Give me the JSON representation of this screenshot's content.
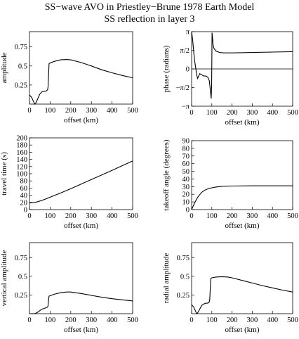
{
  "figure": {
    "title": "SS−wave AVO in Priestley−Brune 1978 Earth Model",
    "subtitle": "SS reflection in layer 3"
  },
  "chart_data": [
    {
      "id": "amplitude",
      "type": "line",
      "xlabel": "offset (km)",
      "ylabel": "amplitude",
      "xlim": [
        0,
        500
      ],
      "ylim": [
        0,
        0.95
      ],
      "xticks": [
        "0",
        "100",
        "200",
        "300",
        "400",
        "500"
      ],
      "yticks": [
        {
          "v": 0.25,
          "t": "0.25"
        },
        {
          "v": 0.5,
          "t": "0.5"
        },
        {
          "v": 0.75,
          "t": "0.75"
        }
      ],
      "zero_line": false,
      "x": [
        0,
        10,
        20,
        25,
        30,
        40,
        50,
        60,
        70,
        80,
        85,
        88,
        90,
        92,
        95,
        100,
        120,
        150,
        180,
        200,
        250,
        300,
        350,
        400,
        450,
        500
      ],
      "y": [
        0.12,
        0.09,
        0.03,
        0.0,
        0.01,
        0.07,
        0.13,
        0.16,
        0.17,
        0.17,
        0.18,
        0.19,
        0.23,
        0.35,
        0.53,
        0.54,
        0.56,
        0.58,
        0.585,
        0.58,
        0.545,
        0.5,
        0.45,
        0.41,
        0.375,
        0.345
      ]
    },
    {
      "id": "phase",
      "type": "line",
      "xlabel": "offset (km)",
      "ylabel": "phase (radians)",
      "xlim": [
        0,
        500
      ],
      "ylim": [
        -3.1416,
        3.1416
      ],
      "xticks": [
        "0",
        "100",
        "200",
        "300",
        "400",
        "500"
      ],
      "yticks": [
        {
          "v": 3.1416,
          "t": "π"
        },
        {
          "v": 1.5708,
          "t": "π/2"
        },
        {
          "v": 0,
          "t": "0"
        },
        {
          "v": -1.5708,
          "t": "−π/2"
        },
        {
          "v": -3.1416,
          "t": "−π"
        }
      ],
      "zero_line": true,
      "x": [
        0,
        5,
        10,
        15,
        20,
        25,
        30,
        35,
        40,
        50,
        60,
        70,
        80,
        88,
        92,
        95,
        97,
        99,
        100,
        101,
        103,
        106,
        110,
        120,
        140,
        160,
        200,
        250,
        300,
        400,
        500
      ],
      "y": [
        3.14,
        2.5,
        1.5,
        0.7,
        0.1,
        -0.5,
        -0.8,
        -0.6,
        -0.4,
        -0.5,
        -0.6,
        -0.6,
        -0.7,
        -1.0,
        -1.7,
        -2.2,
        -2.5,
        -1.5,
        0.5,
        3.05,
        2.7,
        2.1,
        1.75,
        1.5,
        1.38,
        1.35,
        1.35,
        1.37,
        1.39,
        1.42,
        1.45
      ]
    },
    {
      "id": "travel-time",
      "type": "line",
      "xlabel": "offset (km)",
      "ylabel": "travel time (s)",
      "xlim": [
        0,
        500
      ],
      "ylim": [
        0,
        200
      ],
      "xticks": [
        "0",
        "100",
        "200",
        "300",
        "400",
        "500"
      ],
      "yticks": [
        {
          "v": 0,
          "t": "0"
        },
        {
          "v": 20,
          "t": "20"
        },
        {
          "v": 40,
          "t": "40"
        },
        {
          "v": 60,
          "t": "60"
        },
        {
          "v": 80,
          "t": "80"
        },
        {
          "v": 100,
          "t": "100"
        },
        {
          "v": 120,
          "t": "120"
        },
        {
          "v": 140,
          "t": "140"
        },
        {
          "v": 160,
          "t": "160"
        },
        {
          "v": 180,
          "t": "180"
        },
        {
          "v": 200,
          "t": "200"
        }
      ],
      "zero_line": false,
      "x": [
        0,
        20,
        40,
        60,
        80,
        100,
        150,
        200,
        250,
        300,
        350,
        400,
        450,
        500
      ],
      "y": [
        18.5,
        19.5,
        22,
        25.5,
        30,
        34.5,
        46,
        58,
        71,
        84,
        96.5,
        109.5,
        122.5,
        135.5
      ]
    },
    {
      "id": "takeoff-angle",
      "type": "line",
      "xlabel": "offset (km)",
      "ylabel": "takeoff angle (degrees)",
      "xlim": [
        0,
        500
      ],
      "ylim": [
        0,
        90
      ],
      "xticks": [
        "0",
        "100",
        "200",
        "300",
        "400",
        "500"
      ],
      "yticks": [
        {
          "v": 0,
          "t": "0"
        },
        {
          "v": 10,
          "t": "10"
        },
        {
          "v": 20,
          "t": "20"
        },
        {
          "v": 30,
          "t": "30"
        },
        {
          "v": 40,
          "t": "40"
        },
        {
          "v": 50,
          "t": "50"
        },
        {
          "v": 60,
          "t": "60"
        },
        {
          "v": 70,
          "t": "70"
        },
        {
          "v": 80,
          "t": "80"
        },
        {
          "v": 90,
          "t": "90"
        }
      ],
      "zero_line": false,
      "x": [
        0,
        10,
        20,
        30,
        40,
        50,
        60,
        70,
        80,
        90,
        100,
        120,
        150,
        200,
        300,
        400,
        500
      ],
      "y": [
        0,
        6,
        11.5,
        16,
        19.5,
        22.5,
        24.5,
        26,
        27,
        27.8,
        28.5,
        29.5,
        30.3,
        30.8,
        31,
        31,
        31
      ]
    },
    {
      "id": "vertical-amplitude",
      "type": "line",
      "xlabel": "offset (km)",
      "ylabel": "vertical amplitude",
      "xlim": [
        0,
        500
      ],
      "ylim": [
        0,
        0.95
      ],
      "xticks": [
        "0",
        "100",
        "200",
        "300",
        "400",
        "500"
      ],
      "yticks": [
        {
          "v": 0.25,
          "t": "0.25"
        },
        {
          "v": 0.5,
          "t": "0.5"
        },
        {
          "v": 0.75,
          "t": "0.75"
        }
      ],
      "zero_line": false,
      "x": [
        0,
        10,
        20,
        30,
        40,
        50,
        60,
        70,
        80,
        85,
        88,
        90,
        92,
        95,
        100,
        120,
        150,
        180,
        200,
        250,
        300,
        350,
        400,
        450,
        500
      ],
      "y": [
        0.0,
        0.0,
        0.0,
        0.005,
        0.02,
        0.04,
        0.06,
        0.07,
        0.08,
        0.085,
        0.09,
        0.11,
        0.17,
        0.235,
        0.24,
        0.26,
        0.28,
        0.29,
        0.29,
        0.27,
        0.245,
        0.22,
        0.2,
        0.185,
        0.17
      ]
    },
    {
      "id": "radial-amplitude",
      "type": "line",
      "xlabel": "offset (km)",
      "ylabel": "radial amplitude",
      "xlim": [
        0,
        500
      ],
      "ylim": [
        0,
        0.95
      ],
      "xticks": [
        "0",
        "100",
        "200",
        "300",
        "400",
        "500"
      ],
      "yticks": [
        {
          "v": 0.25,
          "t": "0.25"
        },
        {
          "v": 0.5,
          "t": "0.5"
        },
        {
          "v": 0.75,
          "t": "0.75"
        }
      ],
      "zero_line": false,
      "x": [
        0,
        10,
        20,
        25,
        30,
        40,
        50,
        60,
        70,
        80,
        85,
        88,
        90,
        92,
        95,
        100,
        120,
        150,
        180,
        200,
        250,
        300,
        350,
        400,
        450,
        500
      ],
      "y": [
        0.12,
        0.09,
        0.03,
        0.0,
        0.01,
        0.06,
        0.11,
        0.13,
        0.14,
        0.14,
        0.15,
        0.16,
        0.2,
        0.32,
        0.47,
        0.48,
        0.49,
        0.495,
        0.49,
        0.48,
        0.445,
        0.41,
        0.375,
        0.345,
        0.315,
        0.29
      ]
    }
  ]
}
